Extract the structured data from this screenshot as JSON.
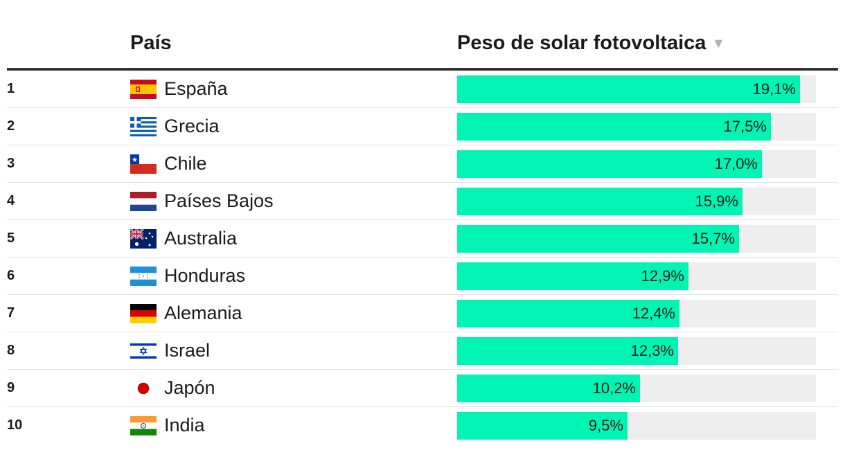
{
  "header": {
    "country_label": "País",
    "value_label": "Peso de solar fotovoltaica",
    "sort_icon": "▼"
  },
  "colors": {
    "bar": "#00f5b4",
    "track": "#eeeeee"
  },
  "chart_data": {
    "type": "bar",
    "orientation": "horizontal",
    "xlim": [
      0,
      20
    ],
    "categories": [
      "España",
      "Grecia",
      "Chile",
      "Países Bajos",
      "Australia",
      "Honduras",
      "Alemania",
      "Israel",
      "Japón",
      "India"
    ],
    "values": [
      19.1,
      17.5,
      17.0,
      15.9,
      15.7,
      12.9,
      12.4,
      12.3,
      10.2,
      9.5
    ],
    "rows": [
      {
        "rank": "1",
        "country": "España",
        "flag": "spain-flag-icon",
        "value": 19.1,
        "label": "19,1%"
      },
      {
        "rank": "2",
        "country": "Grecia",
        "flag": "greece-flag-icon",
        "value": 17.5,
        "label": "17,5%"
      },
      {
        "rank": "3",
        "country": "Chile",
        "flag": "chile-flag-icon",
        "value": 17.0,
        "label": "17,0%"
      },
      {
        "rank": "4",
        "country": "Países Bajos",
        "flag": "netherlands-flag-icon",
        "value": 15.9,
        "label": "15,9%"
      },
      {
        "rank": "5",
        "country": "Australia",
        "flag": "australia-flag-icon",
        "value": 15.7,
        "label": "15,7%"
      },
      {
        "rank": "6",
        "country": "Honduras",
        "flag": "honduras-flag-icon",
        "value": 12.9,
        "label": "12,9%"
      },
      {
        "rank": "7",
        "country": "Alemania",
        "flag": "germany-flag-icon",
        "value": 12.4,
        "label": "12,4%"
      },
      {
        "rank": "8",
        "country": "Israel",
        "flag": "israel-flag-icon",
        "value": 12.3,
        "label": "12,3%"
      },
      {
        "rank": "9",
        "country": "Japón",
        "flag": "japan-flag-icon",
        "value": 10.2,
        "label": "10,2%"
      },
      {
        "rank": "10",
        "country": "India",
        "flag": "india-flag-icon",
        "value": 9.5,
        "label": "9,5%"
      }
    ]
  }
}
